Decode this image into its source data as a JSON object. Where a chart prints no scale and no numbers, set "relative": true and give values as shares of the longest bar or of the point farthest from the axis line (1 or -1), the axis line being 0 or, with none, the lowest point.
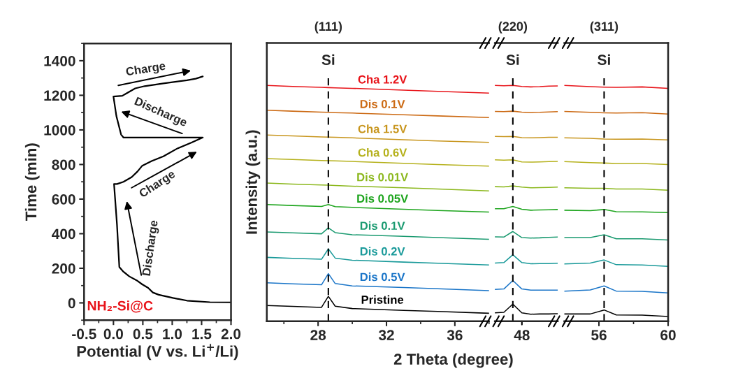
{
  "chart_data": [
    {
      "type": "line",
      "xlabel": "Potential (V vs. Li$^{+}$/Li)",
      "ylabel": "Time (min)",
      "xlim": [
        -0.5,
        2.0
      ],
      "xticks": [
        -0.5,
        {
          "value": 0,
          "label": "0.0"
        },
        0.5,
        {
          "value": 1,
          "label": "1.0"
        },
        1.5,
        {
          "value": 2,
          "label": "2.0"
        }
      ],
      "ylim": [
        -100,
        1500
      ],
      "yticks": [
        0,
        200,
        400,
        600,
        800,
        1000,
        1200,
        1400
      ],
      "grid": false,
      "x": [
        2.0,
        1.64,
        1.25,
        1.01,
        0.77,
        0.67,
        0.59,
        0.49,
        0.41,
        0.27,
        0.17,
        0.1,
        0.06,
        0.01,
        0.06,
        0.17,
        0.31,
        0.41,
        0.49,
        0.65,
        0.85,
        1.09,
        1.33,
        1.52,
        0.17,
        0.13,
        0.05,
        0.0,
        0.15,
        0.23,
        0.37,
        0.53,
        0.85,
        1.25,
        1.4,
        1.52
      ],
      "series": [
        {
          "color": "#000000",
          "values": [
            3,
            4,
            13,
            29,
            47,
            60,
            87,
            107,
            127,
            153,
            180,
            207,
            453,
            687,
            687,
            700,
            727,
            760,
            793,
            820,
            847,
            893,
            927,
            956,
            956,
            973,
            1080,
            1193,
            1197,
            1213,
            1240,
            1253,
            1269,
            1287,
            1296,
            1309
          ]
        }
      ],
      "annotations": [
        "Discharge",
        "Charge",
        "Discharge",
        "Charge",
        "NH₂-Si@C"
      ]
    },
    {
      "type": "line",
      "relative": true,
      "ylabel": "Intensity (a.u.)",
      "xlabel": "2 Theta (degree)",
      "xlim": [
        25,
        38
      ],
      "xticks": [
        28,
        32,
        36
      ],
      "x": [
        25,
        26.5,
        28.2,
        28.6,
        29.0,
        30,
        33,
        35,
        38
      ],
      "series": [
        {
          "name": "Cha 1.2V",
          "color": "#e8141a",
          "values": [
            1.0,
            0.996,
            0.992,
            0.991,
            0.99,
            0.988,
            0.98,
            0.975,
            0.968
          ]
        },
        {
          "name": "Dis 0.1V",
          "color": "#cc6a14",
          "values": [
            0.895,
            0.891,
            0.887,
            0.886,
            0.885,
            0.883,
            0.876,
            0.871,
            0.864
          ]
        },
        {
          "name": "Cha 1.5V",
          "color": "#c8961e",
          "values": [
            0.79,
            0.786,
            0.782,
            0.781,
            0.78,
            0.778,
            0.77,
            0.765,
            0.759
          ]
        },
        {
          "name": "Cha 0.6V",
          "color": "#b5b11c",
          "values": [
            0.69,
            0.686,
            0.682,
            0.681,
            0.68,
            0.678,
            0.67,
            0.665,
            0.658
          ]
        },
        {
          "name": "Dis 0.01V",
          "color": "#8cb81e",
          "values": [
            0.586,
            0.582,
            0.578,
            0.577,
            0.576,
            0.573,
            0.566,
            0.561,
            0.553
          ]
        },
        {
          "name": "Dis 0.05V",
          "color": "#1ea51e",
          "values": [
            0.495,
            0.491,
            0.487,
            0.495,
            0.486,
            0.483,
            0.475,
            0.47,
            0.463
          ]
        },
        {
          "name": "Dis 0.1V",
          "color": "#1a9a70",
          "values": [
            0.379,
            0.375,
            0.371,
            0.396,
            0.376,
            0.367,
            0.36,
            0.355,
            0.348
          ]
        },
        {
          "name": "Dis 0.2V",
          "color": "#1a9a9a",
          "values": [
            0.271,
            0.267,
            0.263,
            0.307,
            0.268,
            0.259,
            0.251,
            0.246,
            0.239
          ]
        },
        {
          "name": "Dis 0.5V",
          "color": "#1a75c8",
          "values": [
            0.163,
            0.159,
            0.155,
            0.202,
            0.16,
            0.15,
            0.143,
            0.138,
            0.13
          ]
        },
        {
          "name": "Pristine",
          "color": "#000000",
          "values": [
            0.067,
            0.063,
            0.059,
            0.106,
            0.064,
            0.054,
            0.046,
            0.042,
            0.034
          ]
        }
      ],
      "ref_lines": [
        {
          "axis": "x",
          "value": 28.6,
          "label": "Si",
          "color": "#000000",
          "line_style": "dashed"
        }
      ],
      "annotations": [
        "(111)"
      ]
    },
    {
      "type": "line",
      "relative": true,
      "categories": [
        null,
        null,
        null,
        null,
        null,
        null,
        null,
        null
      ],
      "series": [
        {
          "color": "#e8141a",
          "values": [
            1.0,
            0.999,
            1.0,
            0.996,
            0.994,
            0.995,
            0.997,
            0.998
          ]
        },
        {
          "color": "#cc6a14",
          "values": [
            0.89,
            0.889,
            0.891,
            0.887,
            0.885,
            0.886,
            0.888,
            0.889
          ]
        },
        {
          "color": "#c8961e",
          "values": [
            0.784,
            0.783,
            0.784,
            0.779,
            0.778,
            0.779,
            0.78,
            0.78
          ]
        },
        {
          "color": "#b5b11c",
          "values": [
            0.685,
            0.683,
            0.685,
            0.676,
            0.675,
            0.676,
            0.677,
            0.678
          ]
        },
        {
          "color": "#8cb81e",
          "values": [
            0.571,
            0.57,
            0.574,
            0.569,
            0.566,
            0.567,
            0.568,
            0.569
          ]
        },
        {
          "color": "#1ea51e",
          "values": [
            0.477,
            0.477,
            0.487,
            0.475,
            0.471,
            0.472,
            0.473,
            0.474
          ]
        },
        {
          "color": "#1a9a70",
          "values": [
            0.358,
            0.357,
            0.381,
            0.355,
            0.353,
            0.354,
            0.356,
            0.357
          ]
        },
        {
          "color": "#1a9a9a",
          "values": [
            0.247,
            0.249,
            0.282,
            0.249,
            0.244,
            0.245,
            0.245,
            0.246
          ]
        },
        {
          "color": "#1a75c8",
          "values": [
            0.135,
            0.137,
            0.173,
            0.137,
            0.132,
            0.132,
            0.132,
            0.132
          ]
        },
        {
          "color": "#000000",
          "values": [
            0.036,
            0.038,
            0.073,
            0.036,
            0.03,
            0.031,
            0.031,
            0.032
          ]
        }
      ],
      "ref_lines": [
        {
          "axis": "x",
          "label": "Si",
          "color": "#000000",
          "line_style": "dashed"
        }
      ],
      "annotations": [
        "(220)",
        "48"
      ]
    },
    {
      "type": "line",
      "relative": true,
      "xlim": [
        54,
        60
      ],
      "xticks": [
        56,
        60
      ],
      "x": [
        54,
        55.5,
        56.3,
        57.0,
        58.5,
        60
      ],
      "series": [
        {
          "color": "#e8141a",
          "values": [
            1.0,
            0.995,
            0.993,
            0.992,
            0.994,
            0.988
          ]
        },
        {
          "color": "#cc6a14",
          "values": [
            0.89,
            0.886,
            0.884,
            0.883,
            0.885,
            0.879
          ]
        },
        {
          "color": "#c8961e",
          "values": [
            0.778,
            0.776,
            0.773,
            0.772,
            0.773,
            0.769
          ]
        },
        {
          "color": "#b5b11c",
          "values": [
            0.677,
            0.673,
            0.671,
            0.669,
            0.669,
            0.665
          ]
        },
        {
          "color": "#8cb81e",
          "values": [
            0.566,
            0.564,
            0.564,
            0.561,
            0.561,
            0.556
          ]
        },
        {
          "color": "#1ea51e",
          "values": [
            0.471,
            0.469,
            0.474,
            0.465,
            0.464,
            0.461
          ]
        },
        {
          "color": "#1a9a70",
          "values": [
            0.355,
            0.355,
            0.367,
            0.35,
            0.35,
            0.345
          ]
        },
        {
          "color": "#1a9a9a",
          "values": [
            0.243,
            0.247,
            0.26,
            0.24,
            0.239,
            0.233
          ]
        },
        {
          "color": "#1a75c8",
          "values": [
            0.128,
            0.133,
            0.15,
            0.128,
            0.127,
            0.12
          ]
        },
        {
          "color": "#000000",
          "values": [
            0.031,
            0.031,
            0.048,
            0.027,
            0.026,
            0.02
          ]
        }
      ],
      "ref_lines": [
        {
          "axis": "x",
          "value": 56.3,
          "label": "Si",
          "color": "#000000",
          "line_style": "dashed"
        }
      ],
      "annotations": [
        "(311)"
      ]
    }
  ]
}
